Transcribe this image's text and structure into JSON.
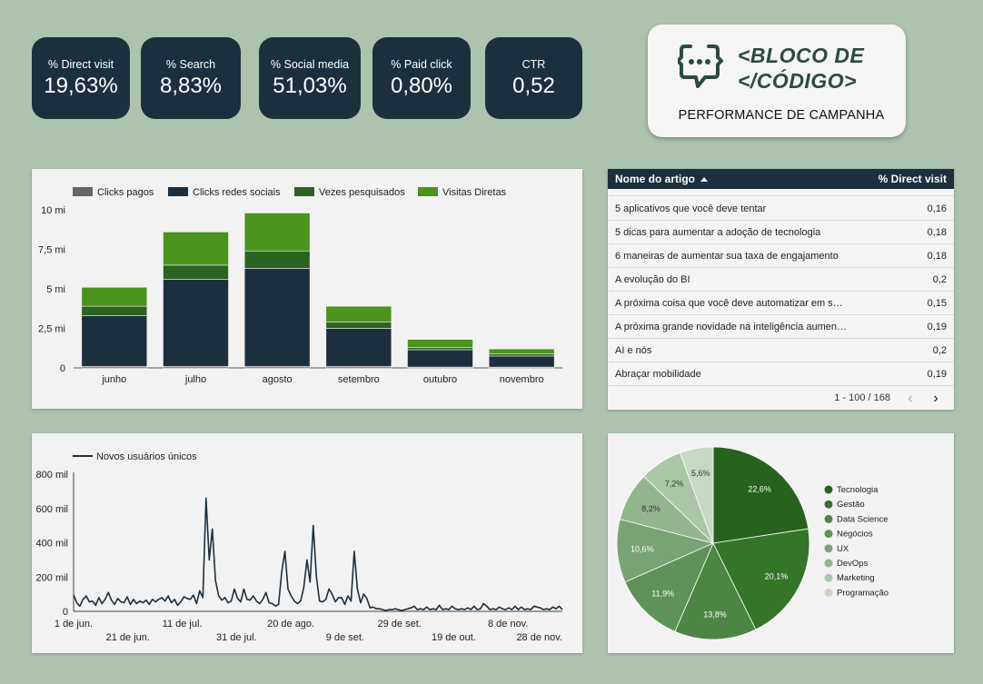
{
  "kpis": [
    {
      "label": "% Direct visit",
      "value": "19,63%"
    },
    {
      "label": "% Search",
      "value": "8,83%"
    },
    {
      "label": "% Social media",
      "value": "51,03%"
    },
    {
      "label": "% Paid click",
      "value": "0,80%"
    },
    {
      "label": "CTR",
      "value": "0,52"
    }
  ],
  "brand": {
    "line1": "<BLOCO DE",
    "line2": "</CÓDIGO>",
    "subtitle": "PERFORMANCE DE CAMPANHA",
    "icon": "code-chat-icon",
    "color": "#2c4a44"
  },
  "chart_data": [
    {
      "type": "bar",
      "stacked": true,
      "categories": [
        "junho",
        "julho",
        "agosto",
        "setembro",
        "outubro",
        "novembro"
      ],
      "series": [
        {
          "name": "Clicks pagos",
          "color": "#666666",
          "values": [
            0.1,
            0.1,
            0.1,
            0.1,
            0.05,
            0.05
          ]
        },
        {
          "name": "Clicks redes sociais",
          "color": "#1c2f3d",
          "values": [
            3.2,
            5.5,
            6.2,
            2.4,
            1.1,
            0.7
          ]
        },
        {
          "name": "Vezes pesquisados",
          "color": "#2d6320",
          "values": [
            0.6,
            0.9,
            1.1,
            0.4,
            0.15,
            0.15
          ]
        },
        {
          "name": "Visitas Diretas",
          "color": "#4a931d",
          "values": [
            1.2,
            2.1,
            2.4,
            1.0,
            0.5,
            0.3
          ]
        }
      ],
      "yticks": [
        "0",
        "2,5 mi",
        "5 mi",
        "7,5 mi",
        "10 mi"
      ],
      "ylim": [
        0,
        10
      ],
      "legend": "top",
      "grid": false
    },
    {
      "type": "line",
      "series": [
        {
          "name": "Novos usuários únicos",
          "color": "#1c2f3d",
          "values": [
            95,
            50,
            30,
            70,
            90,
            55,
            60,
            35,
            80,
            45,
            70,
            110,
            65,
            40,
            75,
            55,
            50,
            85,
            40,
            70,
            45,
            60,
            50,
            65,
            40,
            70,
            55,
            70,
            80,
            60,
            90,
            50,
            70,
            35,
            55,
            85,
            75,
            70,
            95,
            45,
            120,
            80,
            660,
            300,
            480,
            180,
            90,
            65,
            80,
            50,
            60,
            130,
            75,
            55,
            130,
            70,
            65,
            90,
            60,
            45,
            70,
            110,
            50,
            45,
            30,
            40,
            230,
            350,
            130,
            90,
            60,
            45,
            60,
            140,
            300,
            170,
            500,
            200,
            60,
            55,
            70,
            130,
            100,
            55,
            80,
            80,
            40,
            90,
            60,
            350,
            130,
            50,
            100,
            75,
            20,
            25,
            15,
            15,
            10,
            5,
            10,
            10,
            15,
            10,
            5,
            10,
            15,
            20,
            30,
            10,
            15,
            10,
            25,
            10,
            15,
            10,
            35,
            10,
            15,
            10,
            30,
            15,
            10,
            15,
            10,
            20,
            10,
            30,
            10,
            15,
            45,
            30,
            10,
            15,
            10,
            25,
            15,
            10,
            20,
            10,
            30,
            10,
            25,
            10,
            15,
            10,
            30,
            25,
            20,
            10,
            15,
            10,
            25,
            15,
            30,
            10
          ]
        }
      ],
      "x_start": "1 de jun.",
      "x_end": "28 de nov.",
      "xticks_top": [
        "1 de jun.",
        "11 de jul.",
        "20 de ago.",
        "29 de set.",
        "8 de nov."
      ],
      "xticks_bottom": [
        "21 de jun.",
        "31 de jul.",
        "9 de set.",
        "19 de out.",
        "28 de nov."
      ],
      "yticks": [
        "0",
        "200 mil",
        "400 mil",
        "600 mil",
        "800 mil"
      ],
      "ylim": [
        0,
        800
      ],
      "legend": "top-left",
      "grid": false
    },
    {
      "type": "pie",
      "slices": [
        {
          "label": "Tecnologia",
          "value": 22.6,
          "text": "22,6%",
          "color": "#27621f"
        },
        {
          "label": "Gestão",
          "value": 20.1,
          "text": "20,1%",
          "color": "#34752a"
        },
        {
          "label": "Data Science",
          "value": 13.8,
          "text": "13,8%",
          "color": "#4d8644"
        },
        {
          "label": "Negócios",
          "value": 11.9,
          "text": "11,9%",
          "color": "#5e9258"
        },
        {
          "label": "UX",
          "value": 10.6,
          "text": "10,6%",
          "color": "#78a372"
        },
        {
          "label": "DevOps",
          "value": 8.2,
          "text": "8,2%",
          "color": "#93b58d"
        },
        {
          "label": "Marketing",
          "value": 7.2,
          "text": "7,2%",
          "color": "#abc5a7"
        },
        {
          "label": "Programação",
          "value": 5.6,
          "text": "5,6%",
          "color": "#c7d8c3"
        }
      ],
      "legend": "right"
    }
  ],
  "table": {
    "col1": "Nome do artigo",
    "col2": "% Direct visit",
    "rows": [
      {
        "name": "5 aplicativos que você deve tentar",
        "value": "0,16"
      },
      {
        "name": "5 dicas para aumentar a adoção de tecnologia",
        "value": "0,18"
      },
      {
        "name": "6 maneiras de aumentar sua taxa de engajamento",
        "value": "0,18"
      },
      {
        "name": "A evolução do BI",
        "value": "0,2"
      },
      {
        "name": "A próxima coisa que você deve automatizar em s…",
        "value": "0,15"
      },
      {
        "name": "A próxima grande novidade na inteligência aumen…",
        "value": "0,19"
      },
      {
        "name": "AI e nós",
        "value": "0,2"
      },
      {
        "name": "Abraçar mobilidade",
        "value": "0,19"
      }
    ],
    "pagination": "1 - 100 / 168",
    "prev": "‹",
    "next": "›"
  }
}
